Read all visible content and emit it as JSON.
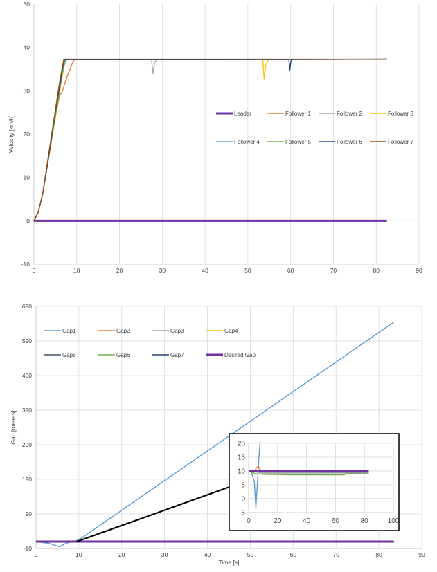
{
  "chart_data": [
    {
      "type": "line",
      "ylabel": "Velocity [km/h]",
      "xlabel": "",
      "xlim": [
        0,
        90
      ],
      "ylim": [
        -10,
        50
      ],
      "xticks": [
        0,
        10,
        20,
        30,
        40,
        50,
        60,
        70,
        80,
        90
      ],
      "yticks": [
        -10,
        0,
        10,
        20,
        30,
        40,
        50
      ],
      "grid": "vertical",
      "legend": "center-right",
      "series": [
        {
          "name": "Leader",
          "color": "#7030A0",
          "points": [
            [
              0,
              0
            ],
            [
              82.5,
              0
            ]
          ]
        },
        {
          "name": "Follower 1",
          "color": "#ED7D31",
          "points": [
            [
              0,
              0
            ],
            [
              1,
              2
            ],
            [
              2,
              6
            ],
            [
              3,
              12
            ],
            [
              4,
              18
            ],
            [
              5,
              24
            ],
            [
              6,
              29
            ],
            [
              6.5,
              29.5
            ],
            [
              7,
              31
            ],
            [
              8,
              34
            ],
            [
              8.5,
              35
            ],
            [
              9,
              36.5
            ],
            [
              9.5,
              37.2
            ],
            [
              12,
              37.2
            ],
            [
              82.5,
              37.3
            ]
          ]
        },
        {
          "name": "Follower 2",
          "color": "#A5A5A5",
          "points": [
            [
              0,
              0
            ],
            [
              1,
              2
            ],
            [
              2,
              6
            ],
            [
              3,
              12
            ],
            [
              4,
              18
            ],
            [
              5,
              24
            ],
            [
              6,
              30
            ],
            [
              7,
              35.5
            ],
            [
              7.5,
              37.2
            ],
            [
              27.5,
              37.2
            ],
            [
              27.8,
              34
            ],
            [
              28.2,
              36.5
            ],
            [
              28.6,
              37.2
            ],
            [
              82.5,
              37.3
            ]
          ]
        },
        {
          "name": "Follower 3",
          "color": "#FFC000",
          "points": [
            [
              0,
              0
            ],
            [
              1,
              2
            ],
            [
              2,
              6
            ],
            [
              3,
              12
            ],
            [
              4,
              18
            ],
            [
              5,
              24
            ],
            [
              6,
              30
            ],
            [
              7,
              36
            ],
            [
              7.5,
              37.2
            ],
            [
              53.5,
              37.2
            ],
            [
              53.8,
              32.8
            ],
            [
              54.2,
              36
            ],
            [
              54.8,
              37.2
            ],
            [
              82.5,
              37.3
            ]
          ]
        },
        {
          "name": "Follower 4",
          "color": "#5B9BD5",
          "points": [
            [
              0,
              0
            ],
            [
              1,
              2
            ],
            [
              2,
              6
            ],
            [
              3,
              12
            ],
            [
              4,
              18
            ],
            [
              5,
              25
            ],
            [
              6,
              31
            ],
            [
              7,
              36.5
            ],
            [
              7.5,
              37.2
            ],
            [
              82.5,
              37.3
            ]
          ]
        },
        {
          "name": "Follower 5",
          "color": "#70AD47",
          "points": [
            [
              0,
              0
            ],
            [
              1,
              2
            ],
            [
              2,
              6
            ],
            [
              3,
              12
            ],
            [
              4,
              18
            ],
            [
              5,
              24
            ],
            [
              6,
              30
            ],
            [
              7,
              36
            ],
            [
              7.5,
              37.2
            ],
            [
              82.5,
              37.3
            ]
          ]
        },
        {
          "name": "Follower 6",
          "color": "#264478",
          "points": [
            [
              0,
              0
            ],
            [
              1,
              2
            ],
            [
              2,
              6
            ],
            [
              3,
              12
            ],
            [
              4,
              18.5
            ],
            [
              5,
              25
            ],
            [
              6,
              31
            ],
            [
              7,
              37
            ],
            [
              7.5,
              37.2
            ],
            [
              59.6,
              37.2
            ],
            [
              59.8,
              34.8
            ],
            [
              60.1,
              37.2
            ],
            [
              82.5,
              37.3
            ]
          ]
        },
        {
          "name": "Follower 7",
          "color": "#9E480E",
          "points": [
            [
              0,
              0
            ],
            [
              1,
              2
            ],
            [
              2,
              6
            ],
            [
              3,
              12.5
            ],
            [
              4,
              19
            ],
            [
              5,
              25.5
            ],
            [
              6,
              32
            ],
            [
              7,
              37.3
            ],
            [
              82.5,
              37.3
            ]
          ]
        }
      ]
    },
    {
      "type": "line",
      "xlabel": "Time [s]",
      "ylabel": "Gap [meters]",
      "xlim": [
        0,
        90
      ],
      "ylim": [
        -10,
        690
      ],
      "xticks": [
        0,
        10,
        20,
        30,
        40,
        50,
        60,
        70,
        80,
        90
      ],
      "yticks": [
        -10,
        90,
        190,
        290,
        390,
        490,
        590,
        690
      ],
      "grid": "both",
      "legend": "top-left",
      "series": [
        {
          "name": "Gap1",
          "color": "#5B9BD5",
          "points": [
            [
              0,
              10
            ],
            [
              3,
              5
            ],
            [
              5.5,
              -5
            ],
            [
              7,
              5
            ],
            [
              10,
              15
            ],
            [
              83.5,
              645
            ]
          ]
        },
        {
          "name": "Gap2",
          "color": "#ED7D31",
          "points": [
            [
              0,
              10
            ],
            [
              83,
              10
            ]
          ]
        },
        {
          "name": "Gap3",
          "color": "#A5A5A5",
          "points": [
            [
              0,
              10
            ],
            [
              83,
              10
            ]
          ]
        },
        {
          "name": "Gap4",
          "color": "#FFC000",
          "points": [
            [
              0,
              10
            ],
            [
              83,
              10
            ]
          ]
        },
        {
          "name": "Gap5",
          "color": "#44546A",
          "points": [
            [
              0,
              10
            ],
            [
              83,
              10
            ]
          ]
        },
        {
          "name": "Gap6",
          "color": "#70AD47",
          "points": [
            [
              0,
              10
            ],
            [
              83,
              9
            ]
          ]
        },
        {
          "name": "Gap7",
          "color": "#264478",
          "points": [
            [
              0,
              10
            ],
            [
              83,
              10
            ]
          ]
        },
        {
          "name": "Desired Gap",
          "color": "#7030A0",
          "points": [
            [
              0,
              10
            ],
            [
              83.5,
              10
            ]
          ]
        }
      ],
      "inset": {
        "xlim": [
          0,
          100
        ],
        "ylim": [
          -5,
          20
        ],
        "xticks": [
          0,
          20,
          40,
          60,
          80,
          100
        ],
        "yticks": [
          -5,
          0,
          5,
          10,
          15,
          20
        ],
        "series": [
          {
            "name": "Gap1",
            "color": "#5B9BD5",
            "points": [
              [
                0,
                10
              ],
              [
                2,
                9.5
              ],
              [
                4,
                6
              ],
              [
                5,
                -3.5
              ],
              [
                6,
                5
              ],
              [
                7,
                14
              ],
              [
                8,
                21
              ]
            ]
          },
          {
            "name": "Gap2",
            "color": "#ED7D31",
            "points": [
              [
                0,
                10
              ],
              [
                4,
                10
              ],
              [
                6,
                11.5
              ],
              [
                7,
                11.5
              ],
              [
                8,
                10.5
              ],
              [
                10,
                10
              ],
              [
                83,
                10
              ]
            ]
          },
          {
            "name": "Gap3",
            "color": "#A5A5A5",
            "points": [
              [
                0,
                10
              ],
              [
                4,
                10
              ],
              [
                6,
                9.5
              ],
              [
                10,
                9.2
              ],
              [
                83,
                9.3
              ]
            ]
          },
          {
            "name": "Gap4",
            "color": "#FFC000",
            "points": [
              [
                0,
                10
              ],
              [
                5,
                10
              ],
              [
                10,
                9.8
              ],
              [
                83,
                9.8
              ]
            ]
          },
          {
            "name": "Gap5",
            "color": "#44546A",
            "points": [
              [
                0,
                10
              ],
              [
                5,
                10
              ],
              [
                10,
                10.2
              ],
              [
                83,
                10.2
              ]
            ]
          },
          {
            "name": "Gap6",
            "color": "#70AD47",
            "points": [
              [
                0,
                10
              ],
              [
                5,
                9
              ],
              [
                10,
                8.8
              ],
              [
                30,
                8.6
              ],
              [
                66,
                8.6
              ],
              [
                67,
                9
              ],
              [
                83,
                9
              ]
            ]
          },
          {
            "name": "Gap7",
            "color": "#264478",
            "points": [
              [
                0,
                10
              ],
              [
                5,
                10
              ],
              [
                10,
                9.6
              ],
              [
                83,
                9.6
              ]
            ]
          },
          {
            "name": "Desired Gap",
            "color": "#7030A0",
            "points": [
              [
                0,
                10
              ],
              [
                83,
                10
              ]
            ]
          }
        ]
      }
    }
  ]
}
